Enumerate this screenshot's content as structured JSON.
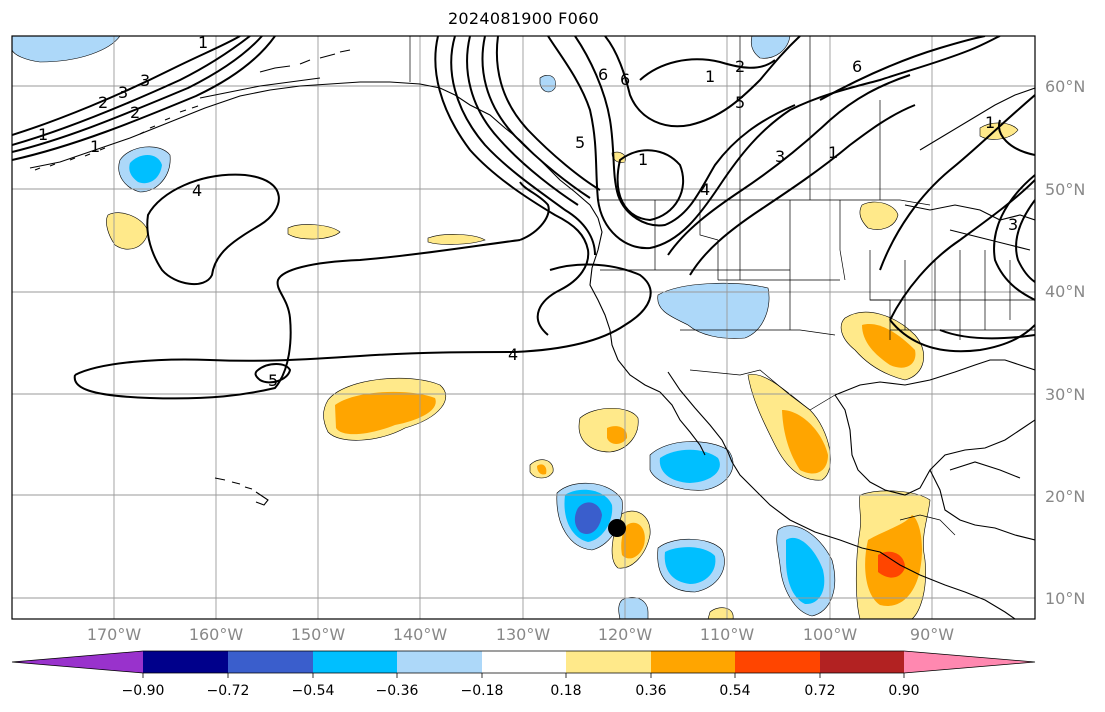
{
  "title": "2024081900 F060",
  "lat_labels": [
    {
      "text": "60°N",
      "lat": 60
    },
    {
      "text": "50°N",
      "lat": 50
    },
    {
      "text": "40°N",
      "lat": 40
    },
    {
      "text": "30°N",
      "lat": 30
    },
    {
      "text": "20°N",
      "lat": 20
    },
    {
      "text": "10°N",
      "lat": 10
    }
  ],
  "lon_labels": [
    {
      "text": "170°W",
      "lon": -170
    },
    {
      "text": "160°W",
      "lon": -160
    },
    {
      "text": "150°W",
      "lon": -150
    },
    {
      "text": "140°W",
      "lon": -140
    },
    {
      "text": "130°W",
      "lon": -130
    },
    {
      "text": "120°W",
      "lon": -120
    },
    {
      "text": "110°W",
      "lon": -110
    },
    {
      "text": "100°W",
      "lon": -100
    },
    {
      "text": "90°W",
      "lon": -90
    }
  ],
  "map_extent": {
    "lon_min": -180,
    "lon_max": -80,
    "lat_min": 8,
    "lat_max": 65
  },
  "colorbar": {
    "colors": [
      "#9932cc",
      "#00008b",
      "#3a5ecc",
      "#00bfff",
      "#add8f9",
      "#ffffff",
      "#ffe98a",
      "#ffa500",
      "#ff4500",
      "#b22222",
      "#ff88b0"
    ],
    "tick_labels": [
      "−0.90",
      "−0.72",
      "−0.54",
      "−0.36",
      "−0.18",
      "0.18",
      "0.36",
      "0.54",
      "0.72",
      "0.90"
    ]
  },
  "contour_labels": [
    "1",
    "1",
    "2",
    "2",
    "3",
    "3",
    "4",
    "4",
    "5",
    "5",
    "6",
    "6",
    "1",
    "2",
    "3",
    "1",
    "1",
    "1",
    "3",
    "4",
    "5",
    "6",
    "1"
  ],
  "storm_marker": {
    "lon": -120,
    "lat": 17
  }
}
